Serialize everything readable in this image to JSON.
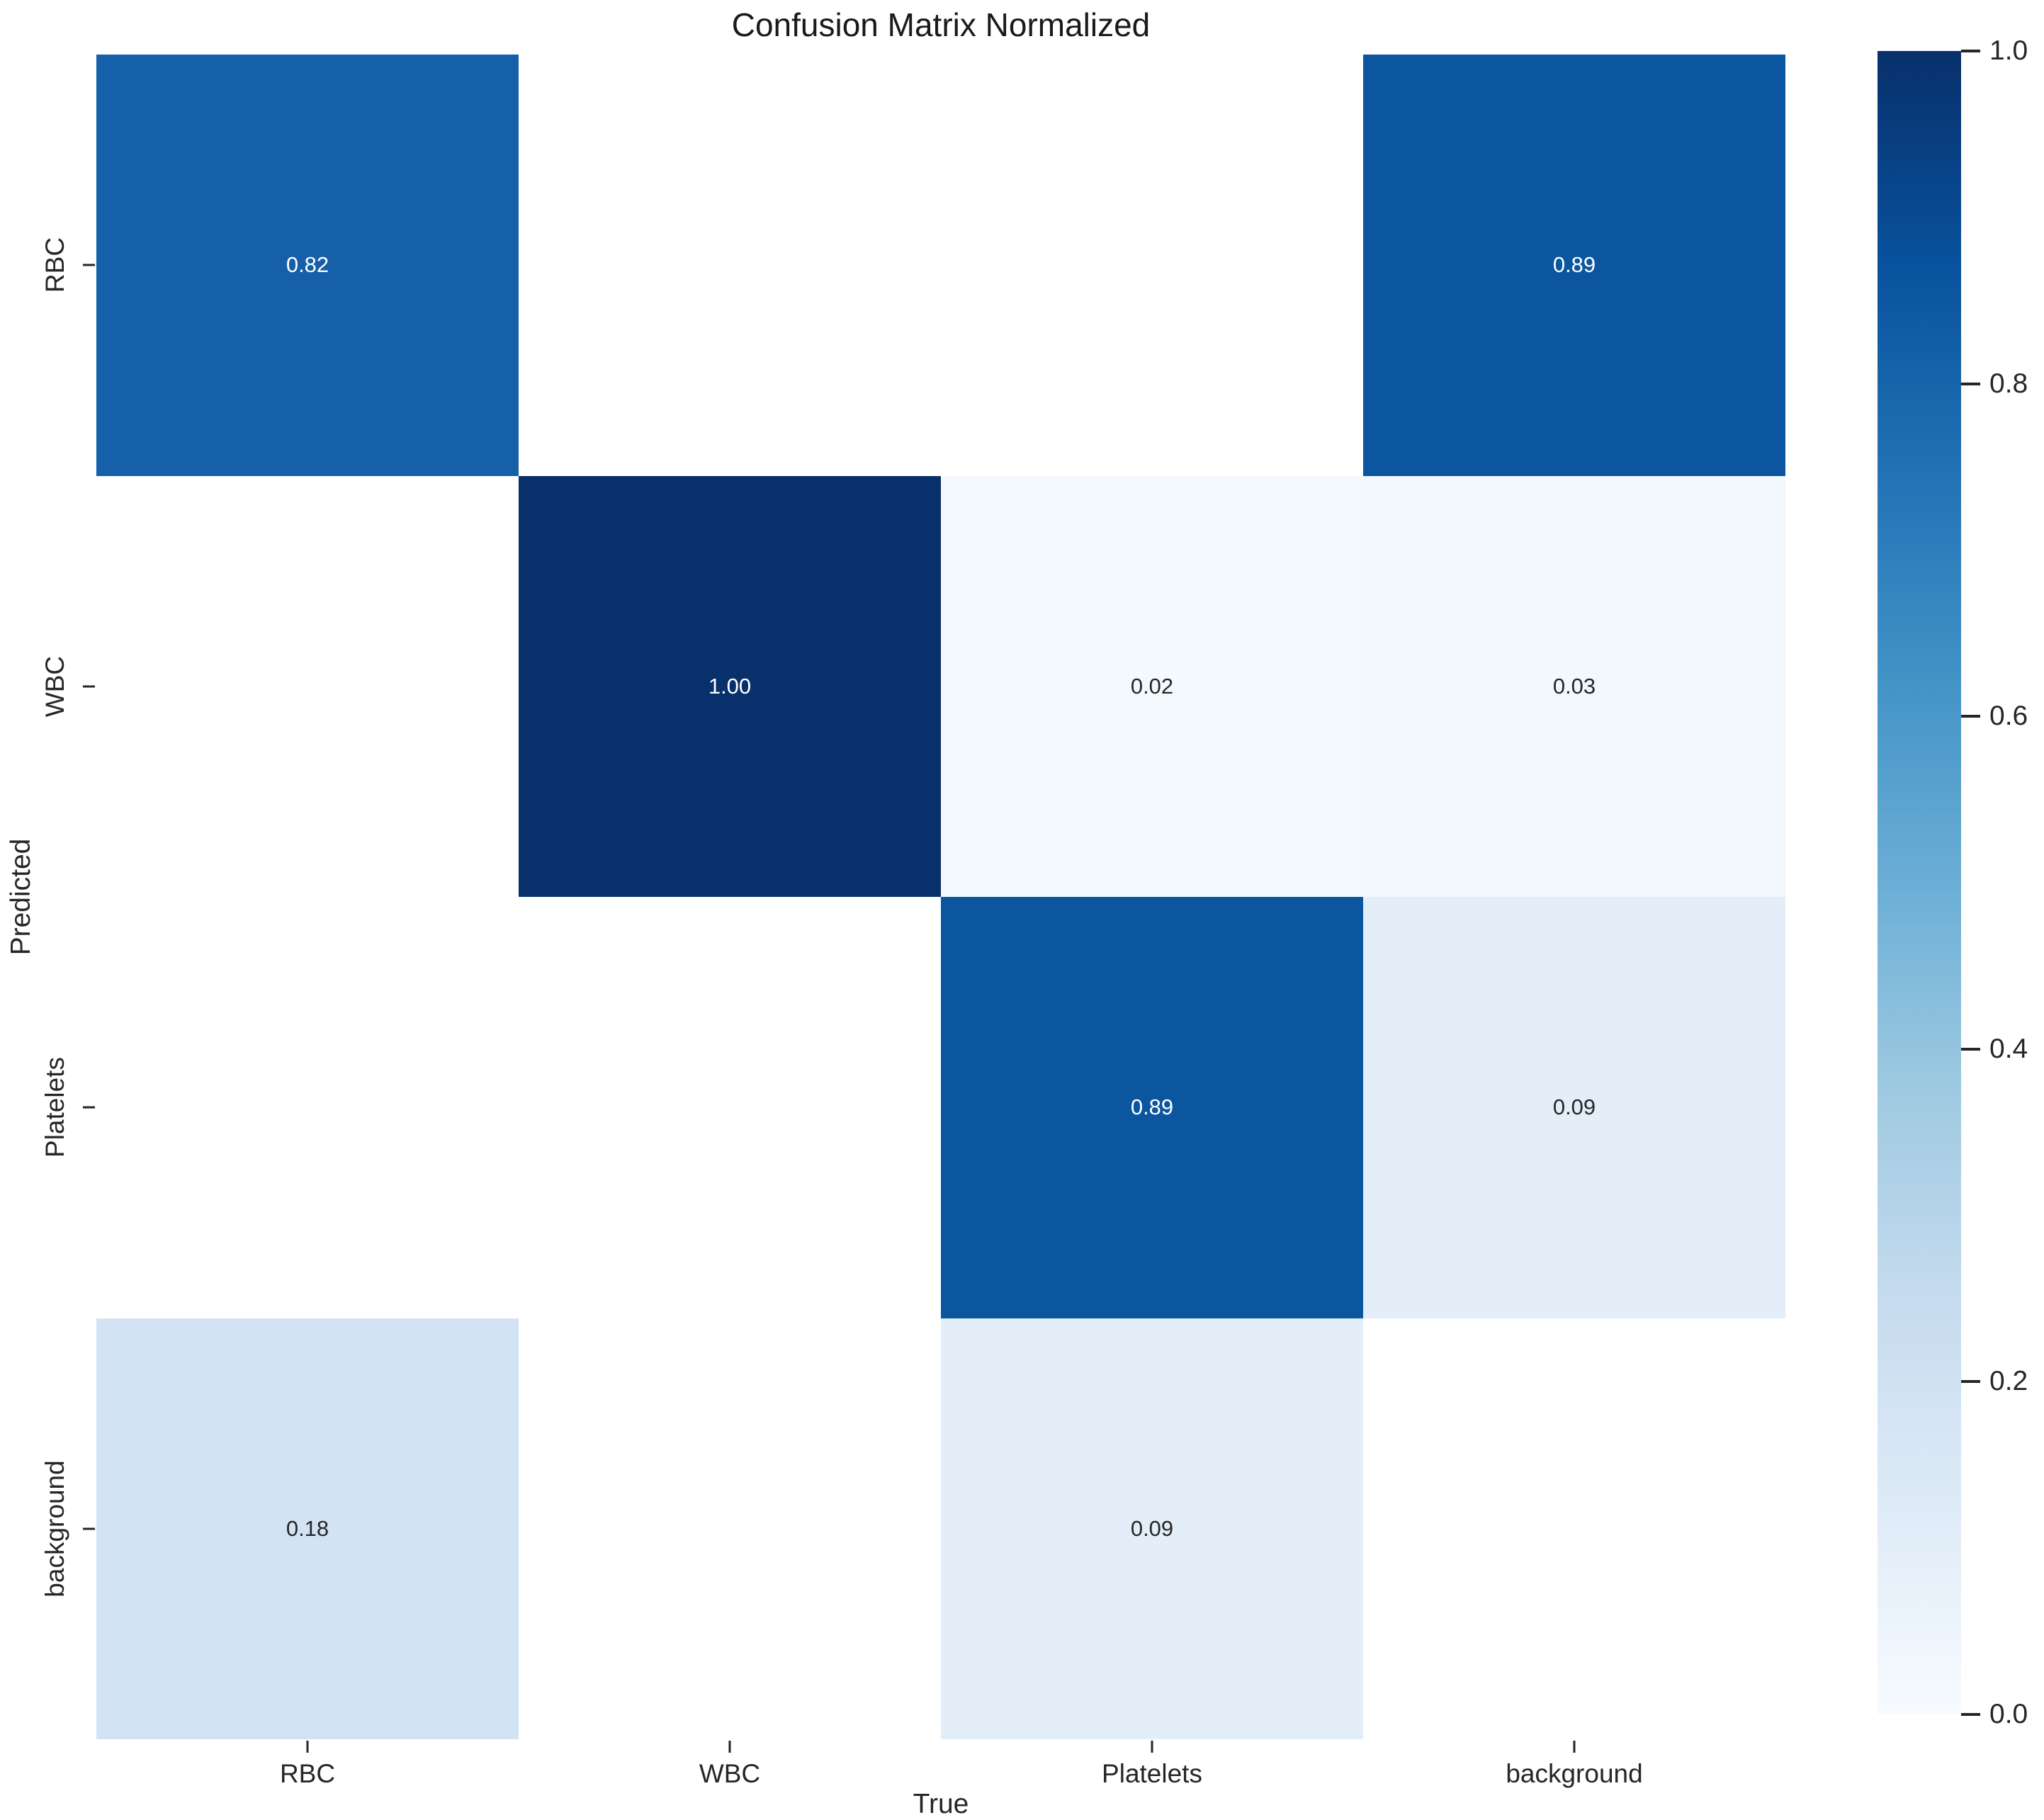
{
  "title": "Confusion Matrix Normalized",
  "axes": {
    "x": {
      "label": "True",
      "tick_labels": [
        "RBC",
        "WBC",
        "Platelets",
        "background"
      ]
    },
    "y": {
      "label": "Predicted",
      "tick_labels": [
        "RBC",
        "WBC",
        "Platelets",
        "background"
      ]
    }
  },
  "heatmap": {
    "rows": [
      {
        "name": "RBC",
        "cells": [
          {
            "value": "0.82",
            "color": "#1560a8",
            "text_color": "#ffffff"
          },
          {
            "value": "",
            "color": "#ffffff",
            "text_color": "#262626"
          },
          {
            "value": "",
            "color": "#ffffff",
            "text_color": "#262626"
          },
          {
            "value": "0.89",
            "color": "#0c56a0",
            "text_color": "#ffffff"
          }
        ]
      },
      {
        "name": "WBC",
        "cells": [
          {
            "value": "",
            "color": "#ffffff",
            "text_color": "#262626"
          },
          {
            "value": "1.00",
            "color": "#08306b",
            "text_color": "#ffffff"
          },
          {
            "value": "0.02",
            "color": "#f4f9fe",
            "text_color": "#262626"
          },
          {
            "value": "0.03",
            "color": "#f2f8fd",
            "text_color": "#262626"
          }
        ]
      },
      {
        "name": "Platelets",
        "cells": [
          {
            "value": "",
            "color": "#ffffff",
            "text_color": "#262626"
          },
          {
            "value": "",
            "color": "#ffffff",
            "text_color": "#262626"
          },
          {
            "value": "0.89",
            "color": "#0c56a0",
            "text_color": "#ffffff"
          },
          {
            "value": "0.09",
            "color": "#e3eef8",
            "text_color": "#262626"
          }
        ]
      },
      {
        "name": "background",
        "cells": [
          {
            "value": "0.18",
            "color": "#d2e3f3",
            "text_color": "#262626"
          },
          {
            "value": "",
            "color": "#ffffff",
            "text_color": "#262626"
          },
          {
            "value": "0.09",
            "color": "#e3eef8",
            "text_color": "#262626"
          },
          {
            "value": "",
            "color": "#ffffff",
            "text_color": "#262626"
          }
        ]
      }
    ]
  },
  "colorbar": {
    "tick_labels": [
      "1.0",
      "0.8",
      "0.6",
      "0.4",
      "0.2",
      "0.0"
    ],
    "gradient_top_to_bottom": [
      [
        "#08306b",
        0
      ],
      [
        "#08519c",
        12.5
      ],
      [
        "#2171b5",
        25
      ],
      [
        "#4292c6",
        37.5
      ],
      [
        "#6baed6",
        50
      ],
      [
        "#9ecae1",
        62.5
      ],
      [
        "#c6dbef",
        75
      ],
      [
        "#deebf7",
        87.5
      ],
      [
        "#f7fbff",
        100
      ]
    ]
  },
  "chart_data": {
    "type": "heatmap",
    "title": "Confusion Matrix Normalized",
    "xlabel": "True",
    "ylabel": "Predicted",
    "x_categories": [
      "RBC",
      "WBC",
      "Platelets",
      "background"
    ],
    "y_categories": [
      "RBC",
      "WBC",
      "Platelets",
      "background"
    ],
    "values": [
      [
        0.82,
        null,
        null,
        0.89
      ],
      [
        null,
        1.0,
        0.02,
        0.03
      ],
      [
        null,
        null,
        0.89,
        0.09
      ],
      [
        0.18,
        null,
        0.09,
        null
      ]
    ],
    "value_format": "0.00",
    "colormap": "Blues",
    "vmin": 0.0,
    "vmax": 1.0,
    "colorbar_position": "right",
    "grid": false,
    "notes": "null cells are rendered blank/white with no annotation"
  }
}
